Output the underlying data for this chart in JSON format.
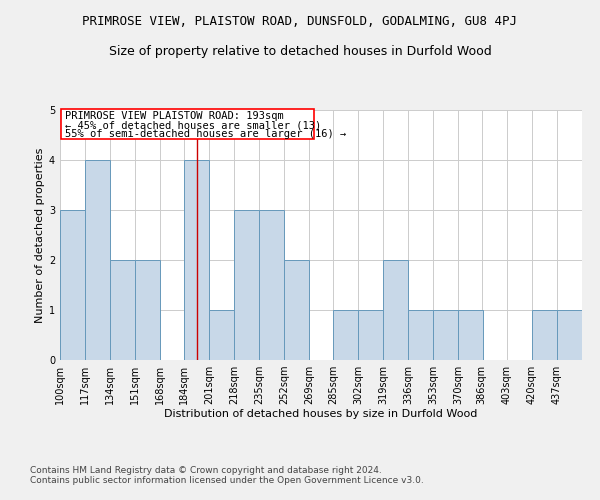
{
  "title": "PRIMROSE VIEW, PLAISTOW ROAD, DUNSFOLD, GODALMING, GU8 4PJ",
  "subtitle": "Size of property relative to detached houses in Durfold Wood",
  "xlabel": "Distribution of detached houses by size in Durfold Wood",
  "ylabel": "Number of detached properties",
  "footer_line1": "Contains HM Land Registry data © Crown copyright and database right 2024.",
  "footer_line2": "Contains public sector information licensed under the Open Government Licence v3.0.",
  "annotation_line1": "PRIMROSE VIEW PLAISTOW ROAD: 193sqm",
  "annotation_line2": "← 45% of detached houses are smaller (13)",
  "annotation_line3": "55% of semi-detached houses are larger (16) →",
  "bar_color": "#c8d8e8",
  "bar_edge_color": "#6699bb",
  "vline_x": 193,
  "vline_color": "#cc0000",
  "categories": [
    "100sqm",
    "117sqm",
    "134sqm",
    "151sqm",
    "168sqm",
    "184sqm",
    "201sqm",
    "218sqm",
    "235sqm",
    "252sqm",
    "269sqm",
    "285sqm",
    "302sqm",
    "319sqm",
    "336sqm",
    "353sqm",
    "370sqm",
    "386sqm",
    "403sqm",
    "420sqm",
    "437sqm"
  ],
  "bin_edges": [
    100,
    117,
    134,
    151,
    168,
    184,
    201,
    218,
    235,
    252,
    269,
    285,
    302,
    319,
    336,
    353,
    370,
    386,
    403,
    420,
    437
  ],
  "bin_width": 17,
  "values": [
    3,
    4,
    2,
    2,
    0,
    4,
    1,
    3,
    3,
    2,
    0,
    1,
    1,
    2,
    1,
    1,
    1,
    0,
    0,
    1,
    1
  ],
  "ylim": [
    0,
    5
  ],
  "yticks": [
    0,
    1,
    2,
    3,
    4,
    5
  ],
  "background_color": "#f0f0f0",
  "plot_bg_color": "#ffffff",
  "grid_color": "#cccccc",
  "title_fontsize": 9,
  "subtitle_fontsize": 9,
  "xlabel_fontsize": 8,
  "ylabel_fontsize": 8,
  "tick_fontsize": 7,
  "annotation_fontsize": 7.5,
  "footer_fontsize": 6.5
}
